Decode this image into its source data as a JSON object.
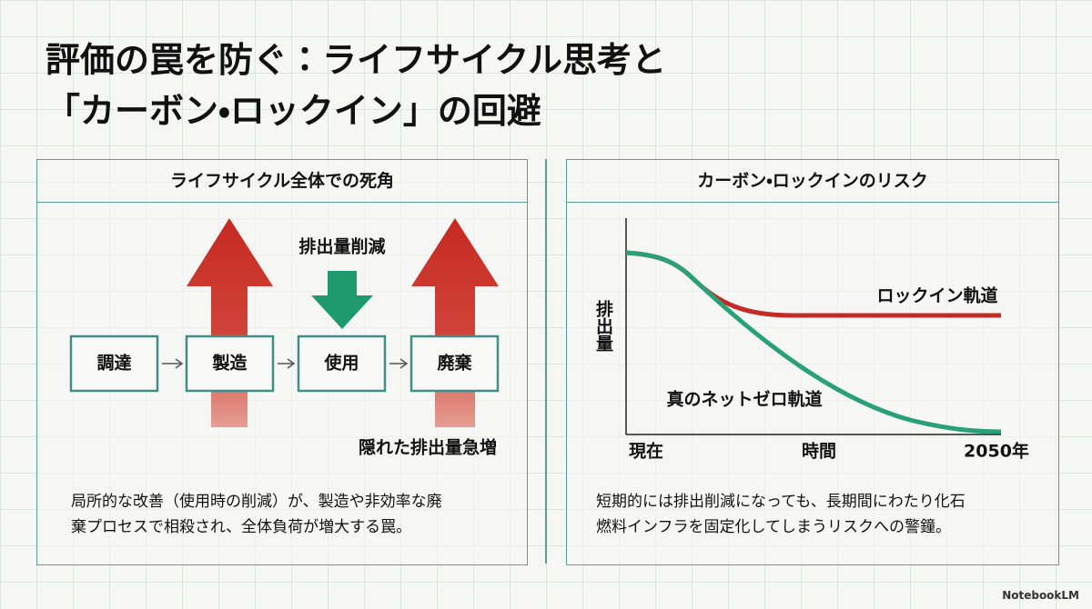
{
  "header": {
    "title_lines": [
      "評価の罠を防ぐ：ライフサイクル思考と",
      "「カーボン・ロックイン」の回避"
    ]
  },
  "left_panel": {
    "heading": "ライフサイクル全体での死角",
    "stages": [
      "調達",
      "製造",
      "使用",
      "廃棄"
    ],
    "reduction_label": "排出量削減",
    "hidden_label": "隠れた排出量急増",
    "caption_lines": [
      "局所的な改善（使用時の削減）が、製造や非効率な廃",
      "棄プロセスで相殺され、全体負荷が増大する罠。"
    ]
  },
  "right_panel": {
    "heading": "カーボン・ロックインのリスク",
    "y_axis_label": "排出量",
    "x_labels": [
      "現在",
      "時間",
      "2050年"
    ],
    "lockin_label": "ロックイン軌道",
    "netzero_label": "真のネットゼロ軌道",
    "caption_lines": [
      "短期的には排出削減になっても、長期間にわたり化石",
      "燃料インフラを固定化してしまうリスクへの警鐘。"
    ]
  },
  "footer": {
    "brand": "NotebookLM"
  }
}
